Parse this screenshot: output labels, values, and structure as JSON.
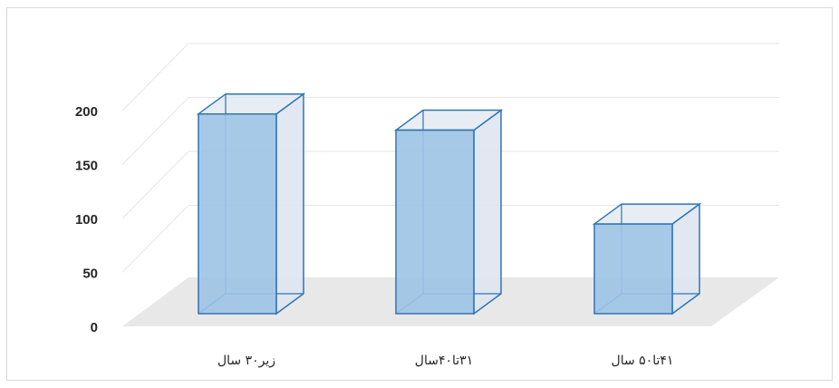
{
  "chart_data": {
    "type": "bar",
    "style": "3d-column",
    "categories": [
      "زیر۳۰ سال",
      "۳۱تا۴۰سال",
      "۴۱تا۵۰ سال"
    ],
    "values": [
      170,
      155,
      68
    ],
    "ylim": [
      0,
      200
    ],
    "yticks": [
      "0",
      "50",
      "100",
      "150",
      "200"
    ],
    "grid": true,
    "legend": "none",
    "colors": {
      "bar_front": "#9DC3E6",
      "bar_edge": "#2E75B6",
      "bar_side": "#DEE6EF",
      "floor": "#e8e8e8",
      "grid": "#e6e6e6",
      "axis_text": "#262626"
    }
  }
}
